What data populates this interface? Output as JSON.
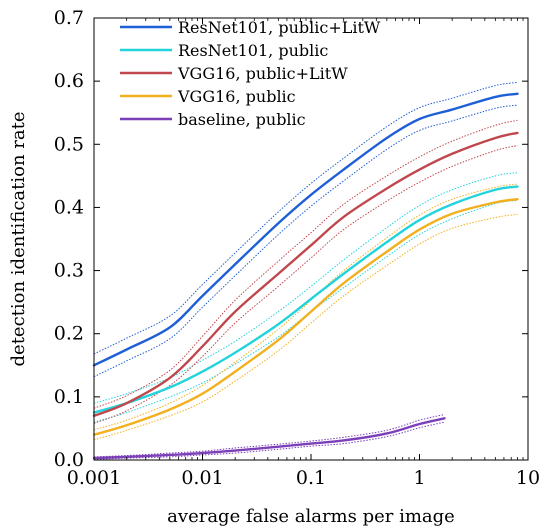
{
  "chart_data": {
    "type": "line",
    "xlabel": "average false alarms per image",
    "ylabel": "detection identification rate",
    "x_scale": "log",
    "xlim": [
      0.001,
      10
    ],
    "ylim": [
      0,
      0.7
    ],
    "x_ticks": [
      0.001,
      0.01,
      0.1,
      1,
      10
    ],
    "x_tick_labels": [
      "0.001",
      "0.01",
      "0.1",
      "1",
      "10"
    ],
    "y_ticks": [
      0,
      0.1,
      0.2,
      0.3,
      0.4,
      0.5,
      0.6,
      0.7
    ],
    "y_tick_labels": [
      "0.0",
      "0.1",
      "0.2",
      "0.3",
      "0.4",
      "0.5",
      "0.6",
      "0.7"
    ],
    "grid": false,
    "legend_position": "top-left",
    "series": [
      {
        "name": "ResNet101, public+LitW",
        "color": "#1f5fd6",
        "x": [
          0.001,
          0.002,
          0.005,
          0.01,
          0.02,
          0.05,
          0.1,
          0.2,
          0.5,
          1,
          2,
          5,
          8
        ],
        "values": [
          0.15,
          0.175,
          0.21,
          0.26,
          0.31,
          0.375,
          0.42,
          0.46,
          0.51,
          0.54,
          0.555,
          0.575,
          0.58
        ],
        "upper": [
          0.168,
          0.193,
          0.228,
          0.278,
          0.328,
          0.393,
          0.438,
          0.478,
          0.528,
          0.558,
          0.573,
          0.593,
          0.598
        ],
        "lower": [
          0.132,
          0.157,
          0.192,
          0.242,
          0.292,
          0.357,
          0.402,
          0.442,
          0.492,
          0.522,
          0.537,
          0.557,
          0.562
        ]
      },
      {
        "name": "ResNet101, public",
        "color": "#22d3dc",
        "x": [
          0.001,
          0.002,
          0.005,
          0.01,
          0.02,
          0.05,
          0.1,
          0.2,
          0.5,
          1,
          2,
          5,
          8
        ],
        "values": [
          0.075,
          0.09,
          0.115,
          0.14,
          0.17,
          0.215,
          0.255,
          0.295,
          0.345,
          0.38,
          0.405,
          0.428,
          0.433
        ],
        "upper": [
          0.09,
          0.105,
          0.13,
          0.158,
          0.188,
          0.235,
          0.275,
          0.317,
          0.368,
          0.403,
          0.428,
          0.45,
          0.455
        ],
        "lower": [
          0.06,
          0.075,
          0.1,
          0.122,
          0.152,
          0.195,
          0.235,
          0.273,
          0.322,
          0.357,
          0.382,
          0.406,
          0.411
        ]
      },
      {
        "name": "VGG16, public+LitW",
        "color": "#c0474c",
        "x": [
          0.001,
          0.002,
          0.005,
          0.01,
          0.02,
          0.05,
          0.1,
          0.2,
          0.5,
          1,
          2,
          5,
          8
        ],
        "values": [
          0.07,
          0.09,
          0.13,
          0.18,
          0.235,
          0.295,
          0.34,
          0.385,
          0.43,
          0.46,
          0.485,
          0.51,
          0.518
        ],
        "upper": [
          0.082,
          0.102,
          0.142,
          0.196,
          0.253,
          0.315,
          0.36,
          0.405,
          0.45,
          0.48,
          0.505,
          0.53,
          0.538
        ],
        "lower": [
          0.058,
          0.078,
          0.118,
          0.164,
          0.217,
          0.275,
          0.32,
          0.365,
          0.41,
          0.44,
          0.465,
          0.49,
          0.498
        ]
      },
      {
        "name": "VGG16, public",
        "color": "#f2b01e",
        "x": [
          0.001,
          0.002,
          0.005,
          0.01,
          0.02,
          0.05,
          0.1,
          0.2,
          0.5,
          1,
          2,
          5,
          8
        ],
        "values": [
          0.04,
          0.055,
          0.08,
          0.105,
          0.14,
          0.19,
          0.235,
          0.28,
          0.33,
          0.365,
          0.39,
          0.408,
          0.413
        ],
        "upper": [
          0.048,
          0.063,
          0.09,
          0.118,
          0.155,
          0.207,
          0.253,
          0.3,
          0.352,
          0.388,
          0.413,
          0.432,
          0.437
        ],
        "lower": [
          0.032,
          0.047,
          0.07,
          0.092,
          0.125,
          0.173,
          0.217,
          0.26,
          0.308,
          0.342,
          0.367,
          0.384,
          0.389
        ]
      },
      {
        "name": "baseline, public",
        "color": "#7b3fb8",
        "x": [
          0.001,
          0.002,
          0.005,
          0.01,
          0.02,
          0.05,
          0.1,
          0.2,
          0.5,
          1,
          1.7
        ],
        "values": [
          0.003,
          0.005,
          0.008,
          0.011,
          0.015,
          0.021,
          0.026,
          0.031,
          0.042,
          0.057,
          0.066
        ],
        "upper": [
          0.005,
          0.007,
          0.011,
          0.014,
          0.019,
          0.025,
          0.03,
          0.036,
          0.047,
          0.063,
          0.072
        ],
        "lower": [
          0.001,
          0.003,
          0.005,
          0.008,
          0.011,
          0.017,
          0.022,
          0.026,
          0.037,
          0.051,
          0.06
        ]
      }
    ]
  }
}
